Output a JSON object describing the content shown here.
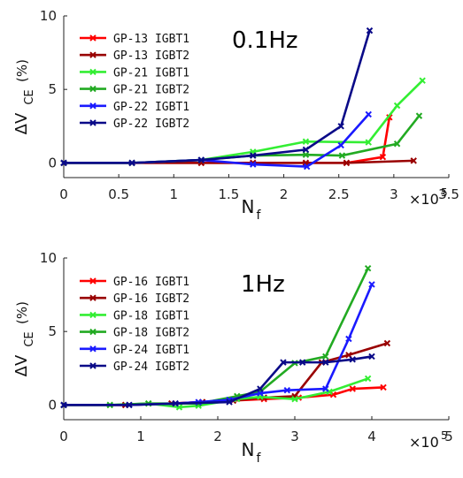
{
  "chart_data": [
    {
      "type": "line",
      "annotation": "0.1Hz",
      "xlabel": "N",
      "xlabel_sub": "f",
      "ylabel": "ΔV",
      "ylabel_sub": "CE",
      "ylabel_unit": "(%)",
      "x_multiplier": "×10",
      "x_multiplier_exp": "5",
      "xlim": [
        0,
        3.5
      ],
      "ylim": [
        -1,
        10
      ],
      "xticks": [
        "0",
        "0.5",
        "1",
        "1.5",
        "2",
        "2.5",
        "3",
        "3.5"
      ],
      "yticks": [
        "0",
        "5",
        "10"
      ],
      "xtick_values": [
        0,
        0.5,
        1,
        1.5,
        2,
        2.5,
        3,
        3.5
      ],
      "ytick_values": [
        0,
        5,
        10
      ],
      "legend_position": "top-left",
      "series": [
        {
          "name": "GP-13 IGBT1",
          "color": "#ff0000",
          "x": [
            0,
            0.62,
            1.25,
            1.72,
            2.2,
            2.57,
            2.9,
            2.96
          ],
          "y": [
            0,
            0,
            0,
            0,
            0,
            0,
            0.4,
            3.1
          ]
        },
        {
          "name": "GP-13 IGBT2",
          "color": "#990000",
          "x": [
            0,
            0.62,
            1.25,
            1.72,
            2.2,
            2.57,
            3.18
          ],
          "y": [
            0,
            0,
            0,
            0,
            0,
            0,
            0.15
          ]
        },
        {
          "name": "GP-21 IGBT1",
          "color": "#33ee33",
          "x": [
            0,
            0.62,
            1.25,
            1.72,
            2.2,
            2.77,
            3.03,
            3.26
          ],
          "y": [
            0,
            0,
            0.2,
            0.75,
            1.45,
            1.4,
            3.9,
            5.6
          ]
        },
        {
          "name": "GP-21 IGBT2",
          "color": "#22aa22",
          "x": [
            0,
            0.62,
            1.25,
            1.72,
            2.2,
            2.53,
            3.03,
            3.23
          ],
          "y": [
            0,
            0,
            0.2,
            0.5,
            0.55,
            0.5,
            1.3,
            3.2
          ]
        },
        {
          "name": "GP-22 IGBT1",
          "color": "#1a1aff",
          "x": [
            0,
            0.62,
            1.25,
            1.72,
            2.21,
            2.52,
            2.77
          ],
          "y": [
            0,
            0,
            0.2,
            -0.1,
            -0.25,
            1.2,
            3.3
          ]
        },
        {
          "name": "GP-22 IGBT2",
          "color": "#0a0a88",
          "x": [
            0,
            0.62,
            1.25,
            1.72,
            2.2,
            2.52,
            2.78
          ],
          "y": [
            0,
            0,
            0.2,
            0.5,
            0.9,
            2.5,
            9.0
          ]
        }
      ]
    },
    {
      "type": "line",
      "annotation": "1Hz",
      "xlabel": "N",
      "xlabel_sub": "f",
      "ylabel": "ΔV",
      "ylabel_sub": "CE",
      "ylabel_unit": "(%)",
      "x_multiplier": "×10",
      "x_multiplier_exp": "5",
      "xlim": [
        0,
        5
      ],
      "ylim": [
        -1,
        10
      ],
      "xticks": [
        "0",
        "1",
        "2",
        "3",
        "4",
        "5"
      ],
      "yticks": [
        "0",
        "5",
        "10"
      ],
      "xtick_values": [
        0,
        1,
        2,
        3,
        4,
        5
      ],
      "ytick_values": [
        0,
        5,
        10
      ],
      "legend_position": "top-left",
      "series": [
        {
          "name": "GP-16 IGBT1",
          "color": "#ff0000",
          "x": [
            0,
            0.8,
            1.4,
            1.8,
            2.2,
            2.6,
            3.05,
            3.5,
            3.75,
            4.15
          ],
          "y": [
            0,
            0,
            0.1,
            0.2,
            0.3,
            0.4,
            0.5,
            0.7,
            1.1,
            1.2
          ]
        },
        {
          "name": "GP-16 IGBT2",
          "color": "#990000",
          "x": [
            0,
            0.8,
            1.4,
            1.8,
            2.2,
            2.6,
            3.0,
            3.35,
            3.7,
            4.2
          ],
          "y": [
            0,
            0,
            0.1,
            0.2,
            0.3,
            0.5,
            0.6,
            2.9,
            3.4,
            4.2
          ]
        },
        {
          "name": "GP-18 IGBT1",
          "color": "#33ee33",
          "x": [
            0,
            0.6,
            1.1,
            1.5,
            1.75,
            2.25,
            2.55,
            3.0,
            3.45,
            3.95
          ],
          "y": [
            0,
            0,
            0.1,
            -0.15,
            -0.05,
            0.4,
            0.55,
            0.4,
            0.9,
            1.8
          ]
        },
        {
          "name": "GP-18 IGBT2",
          "color": "#22aa22",
          "x": [
            0,
            0.6,
            1.1,
            1.75,
            2.25,
            2.55,
            3.0,
            3.4,
            3.95
          ],
          "y": [
            0,
            0,
            0.1,
            0.1,
            0.6,
            0.9,
            2.85,
            3.3,
            9.3
          ]
        },
        {
          "name": "GP-24 IGBT1",
          "color": "#1a1aff",
          "x": [
            0,
            0.85,
            1.45,
            1.75,
            2.15,
            2.55,
            2.9,
            3.4,
            3.7,
            4.0
          ],
          "y": [
            0,
            0,
            0.1,
            0.2,
            0.35,
            0.8,
            1.0,
            1.1,
            4.5,
            8.2
          ]
        },
        {
          "name": "GP-24 IGBT2",
          "color": "#0a0a88",
          "x": [
            0,
            0.85,
            1.45,
            2.15,
            2.55,
            2.85,
            3.1,
            3.4,
            3.75,
            4.0
          ],
          "y": [
            0,
            0,
            0.1,
            0.2,
            1.1,
            2.9,
            2.9,
            2.9,
            3.1,
            3.3
          ]
        }
      ]
    }
  ]
}
